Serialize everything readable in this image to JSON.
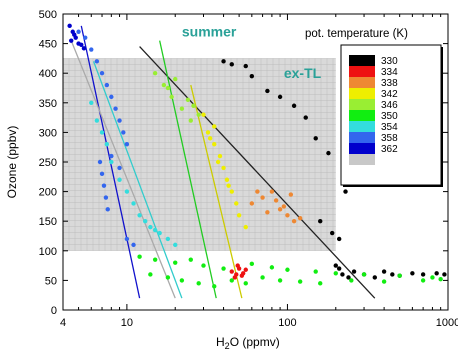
{
  "chart_data": {
    "type": "scatter",
    "xlabel_main": "H",
    "xlabel_sub": "2",
    "xlabel_rest": "O (ppmv)",
    "ylabel": "Ozone (ppbv)",
    "x_scale": "log",
    "xlim": [
      4,
      1000
    ],
    "ylim": [
      0,
      500
    ],
    "x_tick_labels": [
      "4",
      "10",
      "100",
      "1000"
    ],
    "x_tick_values": [
      4,
      10,
      100,
      1000
    ],
    "y_ticks": [
      0,
      50,
      100,
      150,
      200,
      250,
      300,
      350,
      400,
      450,
      500
    ],
    "grid_box": {
      "x": [
        4,
        200
      ],
      "y": [
        100,
        425
      ],
      "color": "#d9d9d9"
    },
    "annotations": [
      {
        "text": "summer",
        "x": 22,
        "y": 462,
        "color": "#2aa198"
      },
      {
        "text": "ex-TL",
        "x": 95,
        "y": 392,
        "color": "#2aa198"
      }
    ],
    "legend": {
      "title": "pot. temperature (K)",
      "placement": "top-right",
      "entries": [
        {
          "label": "330",
          "color": "#000000"
        },
        {
          "label": "334",
          "color": "#ee1111"
        },
        {
          "label": "338",
          "color": "#ee8833"
        },
        {
          "label": "342",
          "color": "#eeee00"
        },
        {
          "label": "346",
          "color": "#99ee33"
        },
        {
          "label": "350",
          "color": "#11ee11"
        },
        {
          "label": "354",
          "color": "#33dddd"
        },
        {
          "label": "358",
          "color": "#3366ee"
        },
        {
          "label": "362",
          "color": "#0000cc"
        },
        {
          "label": "",
          "color": "#c8c8c8"
        }
      ]
    },
    "lines": [
      {
        "color": "#222222",
        "x": [
          12,
          350
        ],
        "y": [
          445,
          20
        ]
      },
      {
        "color": "#1111cc",
        "x": [
          5.2,
          12
        ],
        "y": [
          480,
          20
        ]
      },
      {
        "color": "#33cccc",
        "x": [
          6.2,
          22
        ],
        "y": [
          420,
          20
        ]
      },
      {
        "color": "#22cc22",
        "x": [
          16,
          36
        ],
        "y": [
          455,
          20
        ]
      },
      {
        "color": "#cccc00",
        "x": [
          25,
          52
        ],
        "y": [
          380,
          20
        ]
      },
      {
        "color": "#aaaaaa",
        "x": [
          4.5,
          20
        ],
        "y": [
          455,
          20
        ]
      }
    ],
    "series": [
      {
        "name": "330",
        "color": "#000000",
        "points": [
          [
            200,
            75
          ],
          [
            210,
            70
          ],
          [
            220,
            60
          ],
          [
            240,
            55
          ],
          [
            260,
            65
          ],
          [
            300,
            60
          ],
          [
            350,
            55
          ],
          [
            400,
            65
          ],
          [
            450,
            60
          ],
          [
            500,
            58
          ],
          [
            600,
            62
          ],
          [
            700,
            60
          ],
          [
            850,
            62
          ],
          [
            950,
            60
          ],
          [
            230,
            200
          ],
          [
            180,
            265
          ],
          [
            150,
            290
          ],
          [
            130,
            325
          ],
          [
            110,
            345
          ],
          [
            90,
            360
          ],
          [
            75,
            370
          ],
          [
            60,
            395
          ],
          [
            55,
            412
          ],
          [
            45,
            415
          ],
          [
            40,
            420
          ],
          [
            160,
            150
          ],
          [
            190,
            130
          ],
          [
            210,
            120
          ]
        ]
      },
      {
        "name": "334",
        "color": "#ee1111",
        "points": [
          [
            45,
            65
          ],
          [
            48,
            60
          ],
          [
            50,
            70
          ],
          [
            52,
            58
          ],
          [
            55,
            68
          ],
          [
            47,
            55
          ],
          [
            49,
            75
          ],
          [
            53,
            62
          ]
        ]
      },
      {
        "name": "338",
        "color": "#ee8833",
        "points": [
          [
            60,
            180
          ],
          [
            70,
            190
          ],
          [
            80,
            200
          ],
          [
            90,
            170
          ],
          [
            100,
            160
          ],
          [
            110,
            150
          ],
          [
            85,
            185
          ],
          [
            95,
            175
          ],
          [
            75,
            165
          ],
          [
            65,
            200
          ],
          [
            120,
            155
          ],
          [
            105,
            195
          ]
        ]
      },
      {
        "name": "342",
        "color": "#eeee00",
        "points": [
          [
            30,
            330
          ],
          [
            32,
            300
          ],
          [
            35,
            280
          ],
          [
            38,
            260
          ],
          [
            40,
            240
          ],
          [
            42,
            220
          ],
          [
            45,
            200
          ],
          [
            48,
            180
          ],
          [
            50,
            160
          ],
          [
            55,
            140
          ],
          [
            35,
            310
          ],
          [
            33,
            290
          ],
          [
            37,
            250
          ],
          [
            43,
            210
          ]
        ]
      },
      {
        "name": "346",
        "color": "#99ee33",
        "points": [
          [
            15,
            400
          ],
          [
            17,
            380
          ],
          [
            19,
            360
          ],
          [
            22,
            340
          ],
          [
            25,
            320
          ],
          [
            28,
            330
          ],
          [
            20,
            390
          ],
          [
            18,
            375
          ],
          [
            24,
            355
          ],
          [
            26,
            345
          ]
        ]
      },
      {
        "name": "350",
        "color": "#11ee11",
        "points": [
          [
            12,
            90
          ],
          [
            15,
            85
          ],
          [
            20,
            80
          ],
          [
            25,
            85
          ],
          [
            30,
            75
          ],
          [
            40,
            70
          ],
          [
            60,
            78
          ],
          [
            80,
            72
          ],
          [
            100,
            68
          ],
          [
            150,
            65
          ],
          [
            200,
            62
          ],
          [
            300,
            60
          ],
          [
            500,
            58
          ],
          [
            800,
            55
          ],
          [
            14,
            60
          ],
          [
            18,
            55
          ],
          [
            22,
            50
          ],
          [
            28,
            45
          ],
          [
            35,
            40
          ],
          [
            45,
            50
          ],
          [
            55,
            45
          ],
          [
            70,
            55
          ],
          [
            90,
            50
          ],
          [
            120,
            48
          ],
          [
            160,
            45
          ],
          [
            250,
            50
          ],
          [
            400,
            48
          ],
          [
            700,
            50
          ],
          [
            900,
            52
          ]
        ]
      },
      {
        "name": "354",
        "color": "#33dddd",
        "points": [
          [
            6,
            350
          ],
          [
            6.5,
            320
          ],
          [
            7,
            300
          ],
          [
            7.5,
            280
          ],
          [
            8,
            250
          ],
          [
            9,
            220
          ],
          [
            10,
            200
          ],
          [
            11,
            180
          ],
          [
            12,
            160
          ],
          [
            14,
            140
          ],
          [
            16,
            130
          ],
          [
            18,
            120
          ],
          [
            20,
            110
          ],
          [
            13,
            150
          ],
          [
            15,
            135
          ]
        ]
      },
      {
        "name": "358",
        "color": "#3366ee",
        "points": [
          [
            5,
            470
          ],
          [
            5.5,
            460
          ],
          [
            6,
            440
          ],
          [
            6.5,
            420
          ],
          [
            7,
            400
          ],
          [
            7.5,
            380
          ],
          [
            8,
            360
          ],
          [
            8.5,
            340
          ],
          [
            9,
            320
          ],
          [
            9.5,
            300
          ],
          [
            10,
            280
          ],
          [
            6.8,
            250
          ],
          [
            7,
            230
          ],
          [
            7.2,
            210
          ],
          [
            7.4,
            190
          ],
          [
            7.6,
            170
          ],
          [
            8,
            260
          ],
          [
            9,
            240
          ],
          [
            10,
            120
          ],
          [
            11,
            110
          ]
        ]
      },
      {
        "name": "362",
        "color": "#0000cc",
        "points": [
          [
            4.4,
            480
          ],
          [
            4.6,
            470
          ],
          [
            4.8,
            460
          ],
          [
            5.0,
            450
          ],
          [
            4.5,
            455
          ],
          [
            4.7,
            465
          ],
          [
            5.2,
            448
          ],
          [
            5.4,
            442
          ]
        ]
      }
    ]
  }
}
